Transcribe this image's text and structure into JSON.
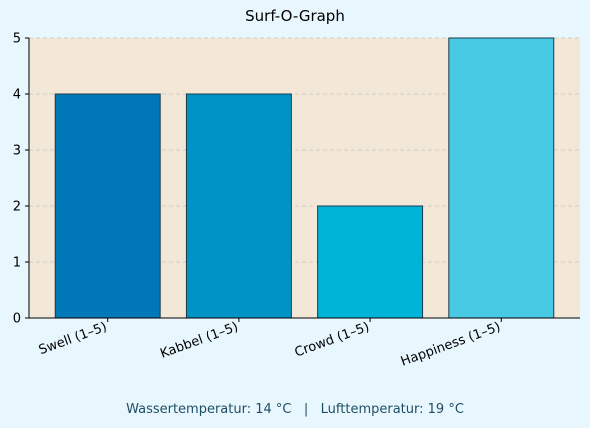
{
  "chart_data": {
    "type": "bar",
    "title": "Surf-O-Graph",
    "xlabel": "",
    "ylabel": "",
    "categories": [
      "Swell (1–5)",
      "Kabbel (1–5)",
      "Crowd (1–5)",
      "Happiness (1–5)"
    ],
    "values": [
      4,
      4,
      2,
      5
    ],
    "colors": [
      "#0077b6",
      "#0094c6",
      "#00b4d8",
      "#48cae4"
    ],
    "ylim": [
      0,
      5
    ],
    "yticks": [
      0,
      1,
      2,
      3,
      4,
      5
    ],
    "grid": "horizontal dashed",
    "plot_background": "#f3e8d8"
  },
  "footnote": "Wassertemperatur: 14 °C   |   Lufttemperatur: 19 °C"
}
